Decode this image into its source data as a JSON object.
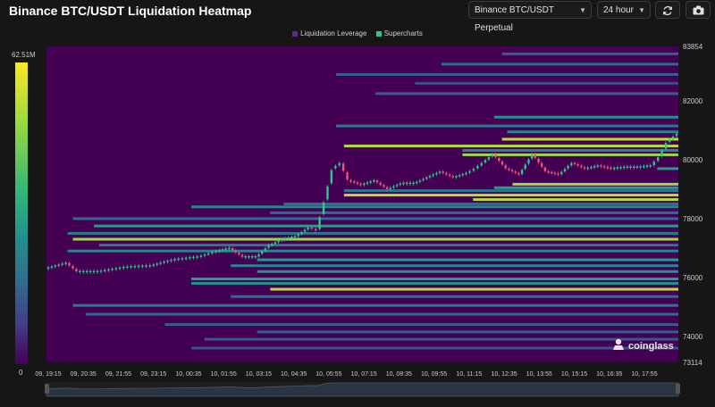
{
  "header": {
    "title": "Binance BTC/USDT Liquidation Heatmap",
    "pair_select": "Binance BTC/USDT Perpetual",
    "range_select": "24 hour",
    "refresh_icon": "refresh-icon",
    "camera_icon": "camera-icon"
  },
  "legend": {
    "items": [
      {
        "label": "Liquidation Leverage",
        "color": "#5b2b8a"
      },
      {
        "label": "Supercharts",
        "color": "#2ec98a"
      }
    ]
  },
  "colorscale": {
    "max_label": "62.51M",
    "min_label": "0",
    "colors": [
      "#440154",
      "#443983",
      "#31688e",
      "#21918c",
      "#35b779",
      "#90d743",
      "#fde725"
    ]
  },
  "watermark": {
    "text": "coinglass",
    "icon": "coinglass-logo-icon"
  },
  "chart_data": {
    "type": "heatmap",
    "title": "Binance BTC/USDT Liquidation Heatmap",
    "y_axis": {
      "ticks": [
        74000,
        76000,
        78000,
        80000,
        82000
      ],
      "top_label": "83854",
      "bottom_label": "73114",
      "range": [
        73114,
        83854
      ],
      "side": "right"
    },
    "x_axis": {
      "ticks": [
        "09, 19:15",
        "09, 20:35",
        "09, 21:55",
        "09, 23:15",
        "10, 00:35",
        "10, 01:55",
        "10, 03:15",
        "10, 04:35",
        "10, 05:55",
        "10, 07:15",
        "10, 08:35",
        "10, 09:55",
        "10, 11:15",
        "10, 12:35",
        "10, 13:55",
        "10, 15:15",
        "10, 16:35",
        "10, 17:55"
      ],
      "time_range": [
        0,
        24
      ]
    },
    "heatmap_background": "#440154",
    "liquidation_bands": [
      {
        "price": 83600,
        "start": 17.3,
        "level": 0.3
      },
      {
        "price": 83250,
        "start": 15.0,
        "level": 0.35
      },
      {
        "price": 82900,
        "start": 11.0,
        "level": 0.3
      },
      {
        "price": 82600,
        "start": 14.0,
        "level": 0.25
      },
      {
        "price": 82250,
        "start": 12.5,
        "level": 0.3
      },
      {
        "price": 81450,
        "start": 17.0,
        "level": 0.5
      },
      {
        "price": 81150,
        "start": 11.0,
        "level": 0.4
      },
      {
        "price": 80950,
        "start": 17.5,
        "level": 0.45
      },
      {
        "price": 80700,
        "start": 17.3,
        "level": 0.9
      },
      {
        "price": 80470,
        "start": 11.3,
        "level": 0.88
      },
      {
        "price": 80320,
        "start": 15.8,
        "level": 0.45
      },
      {
        "price": 80170,
        "start": 15.8,
        "level": 0.85
      },
      {
        "price": 79700,
        "start": 23.2,
        "level": 0.55
      },
      {
        "price": 79170,
        "start": 17.7,
        "level": 0.85
      },
      {
        "price": 79050,
        "start": 17.0,
        "level": 0.55
      },
      {
        "price": 78950,
        "start": 11.3,
        "level": 0.4
      },
      {
        "price": 78800,
        "start": 11.3,
        "level": 0.9
      },
      {
        "price": 78650,
        "start": 16.2,
        "level": 0.88
      },
      {
        "price": 78500,
        "start": 9.0,
        "level": 0.35
      },
      {
        "price": 78400,
        "start": 5.5,
        "level": 0.45
      },
      {
        "price": 78200,
        "start": 8.5,
        "level": 0.35
      },
      {
        "price": 78000,
        "start": 1.0,
        "level": 0.35
      },
      {
        "price": 77750,
        "start": 1.8,
        "level": 0.55
      },
      {
        "price": 77500,
        "start": 0.8,
        "level": 0.4
      },
      {
        "price": 77300,
        "start": 1.0,
        "level": 0.85
      },
      {
        "price": 77100,
        "start": 2.0,
        "level": 0.4
      },
      {
        "price": 76900,
        "start": 0.8,
        "level": 0.45
      },
      {
        "price": 76600,
        "start": 8.0,
        "level": 0.55
      },
      {
        "price": 76400,
        "start": 7.0,
        "level": 0.45
      },
      {
        "price": 76200,
        "start": 8.0,
        "level": 0.5
      },
      {
        "price": 75950,
        "start": 5.5,
        "level": 0.55
      },
      {
        "price": 75800,
        "start": 5.5,
        "level": 0.5
      },
      {
        "price": 75600,
        "start": 8.5,
        "level": 0.9
      },
      {
        "price": 75350,
        "start": 7.0,
        "level": 0.35
      },
      {
        "price": 75050,
        "start": 1.0,
        "level": 0.4
      },
      {
        "price": 74750,
        "start": 1.5,
        "level": 0.35
      },
      {
        "price": 74400,
        "start": 4.5,
        "level": 0.3
      },
      {
        "price": 74150,
        "start": 8.0,
        "level": 0.3
      },
      {
        "price": 73900,
        "start": 6.0,
        "level": 0.28
      },
      {
        "price": 73600,
        "start": 5.5,
        "level": 0.25
      }
    ],
    "price_series": {
      "name": "Supercharts",
      "t": [
        0,
        0.8,
        1.2,
        2.0,
        3.0,
        4.0,
        4.8,
        5.8,
        6.5,
        7.0,
        7.5,
        8.0,
        8.5,
        9.0,
        9.5,
        10.0,
        10.3,
        10.6,
        10.9,
        11.2,
        11.5,
        12.0,
        12.5,
        13.0,
        13.5,
        14.0,
        14.5,
        15.0,
        15.5,
        16.0,
        16.3,
        16.6,
        17.0,
        17.5,
        18.0,
        18.5,
        19.0,
        19.5,
        20.0,
        20.5,
        21.0,
        21.5,
        22.0,
        22.5,
        23.0,
        23.3,
        23.6,
        24.0
      ],
      "price": [
        76300,
        76500,
        76200,
        76200,
        76350,
        76400,
        76600,
        76700,
        76900,
        77000,
        76700,
        76700,
        77100,
        77300,
        77400,
        77700,
        77600,
        78600,
        79700,
        79900,
        79300,
        79150,
        79300,
        79000,
        79200,
        79200,
        79400,
        79600,
        79400,
        79550,
        79700,
        79900,
        80200,
        79700,
        79500,
        80200,
        79600,
        79500,
        79900,
        79700,
        79800,
        79700,
        79750,
        79750,
        79800,
        80100,
        80600,
        80900
      ],
      "color_up": "#2ec98a",
      "color_down": "#f0557a"
    },
    "legend": [
      "Liquidation Leverage",
      "Supercharts"
    ],
    "legend_position": "top-center",
    "grid": false
  }
}
